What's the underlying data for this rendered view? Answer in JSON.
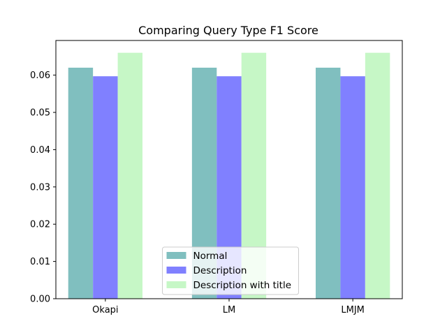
{
  "chart_data": {
    "type": "bar",
    "title": "Comparing Query Type F1 Score",
    "xlabel": "",
    "ylabel": "",
    "categories": [
      "Okapi",
      "LM",
      "LMJM"
    ],
    "series": [
      {
        "name": "Normal",
        "values": [
          0.062,
          0.062,
          0.062
        ],
        "color": "#80bfbf"
      },
      {
        "name": "Description",
        "values": [
          0.0597,
          0.0597,
          0.0597
        ],
        "color": "#8080ff"
      },
      {
        "name": "Description with title",
        "values": [
          0.066,
          0.066,
          0.066
        ],
        "color": "#c6f7c6"
      }
    ],
    "ylim": [
      0,
      0.0693
    ],
    "yticks": [
      "0.00",
      "0.01",
      "0.02",
      "0.03",
      "0.04",
      "0.05",
      "0.06"
    ],
    "legend_position": "bottom-center",
    "grid": false
  }
}
